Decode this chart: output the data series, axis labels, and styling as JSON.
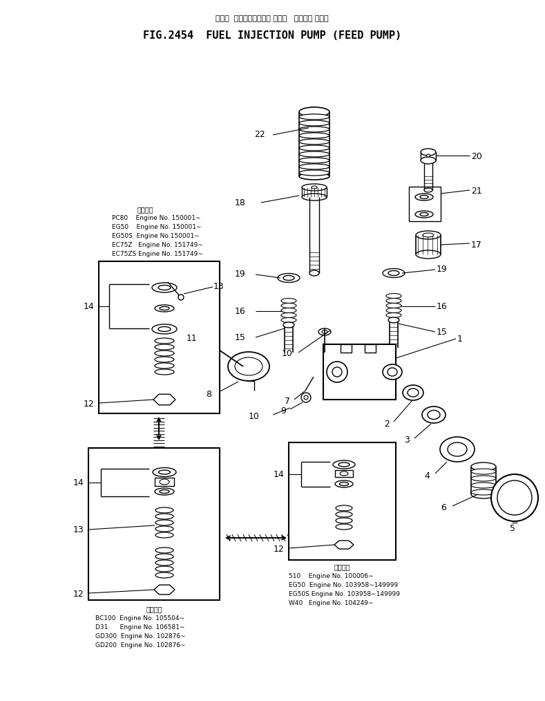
{
  "title_jp": "フェル  インジェクション ポンプ   フィード ポンプ",
  "title_en": "FIG.2454  FUEL INJECTION PUMP (FEED PUMP)",
  "bg_color": "#ffffff",
  "lc": "#000000",
  "fig_width": 7.89,
  "fig_height": 10.14,
  "app_upper_header": "適用号機",
  "app_upper_lines": [
    "PC80    Engine No. 150001∼",
    "EG50    Engine No. 150001∼",
    "EG50S  Engine No.150001∼",
    "EC75Z   Engine No. 151749∼",
    "EC75ZS Engine No. 151749∼"
  ],
  "app_ll_header": "適用号機",
  "app_ll_lines": [
    "BC100  Engine No. 105504∼",
    "D31      Engine No. 106581∼",
    "GD300  Engine No. 102876∼",
    "GD200  Engine No. 102876∼"
  ],
  "app_lr_header": "適用号機",
  "app_lr_lines": [
    "510    Engine No. 100006∼",
    "EG50  Engine No. 103958∼149999",
    "EG50S Engine No. 103958∼149999",
    "W40   Engine No. 104249∼"
  ]
}
